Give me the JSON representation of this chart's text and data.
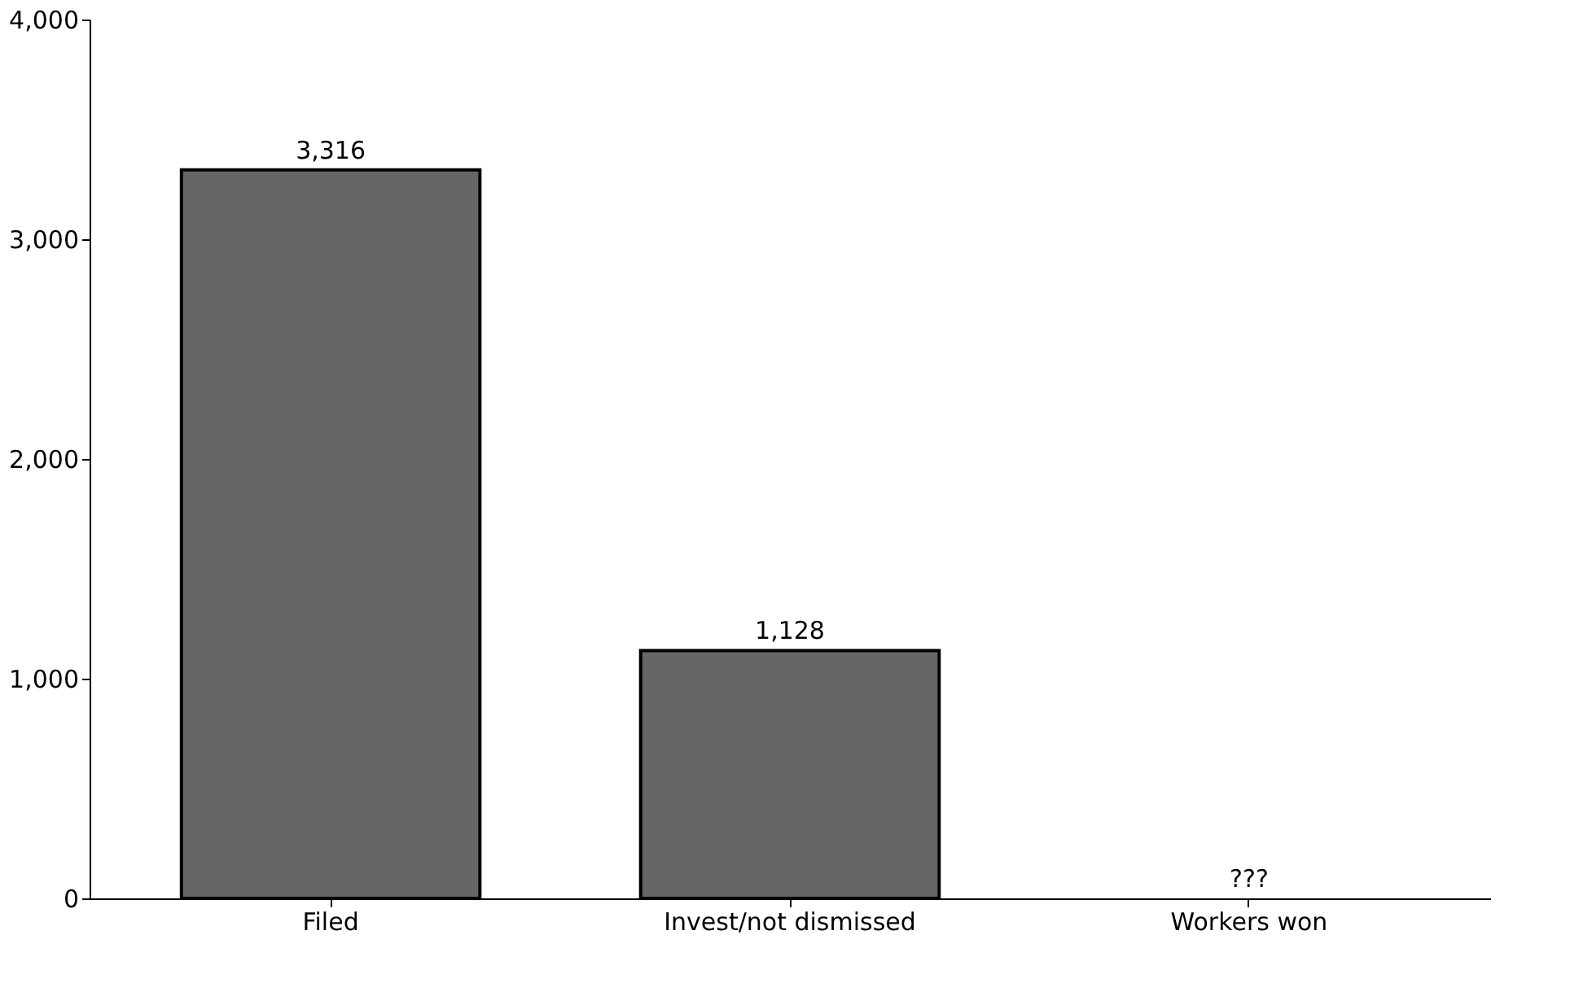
{
  "chart_data": {
    "type": "bar",
    "categories": [
      "Filed",
      "Invest/not dismissed",
      "Workers won"
    ],
    "values": [
      3316,
      1128,
      null
    ],
    "value_labels": [
      "3,316",
      "1,128",
      "???"
    ],
    "color": "#666666",
    "ylim": [
      0,
      4000
    ],
    "yticks": [
      0,
      {
        "value": 1000,
        "label": "1,000"
      },
      {
        "value": 2000,
        "label": "2,000"
      },
      {
        "value": 3000,
        "label": "3,000"
      },
      {
        "value": 4000,
        "label": "4,000"
      }
    ],
    "grid": false
  }
}
